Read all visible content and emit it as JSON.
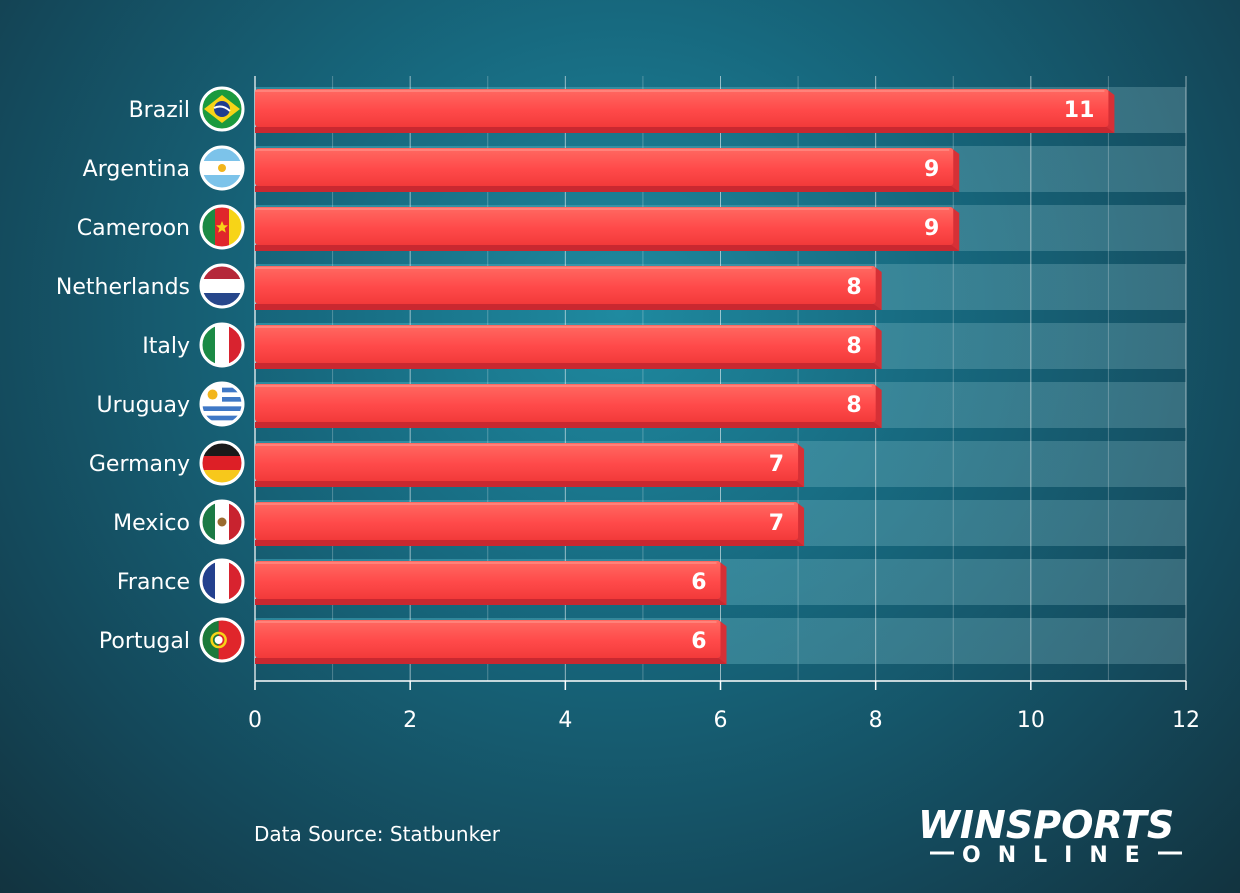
{
  "chart_data": {
    "type": "bar",
    "orientation": "horizontal",
    "categories": [
      "Brazil",
      "Argentina",
      "Cameroon",
      "Netherlands",
      "Italy",
      "Uruguay",
      "Germany",
      "Mexico",
      "France",
      "Portugal"
    ],
    "values": [
      11,
      9,
      9,
      8,
      8,
      8,
      7,
      7,
      6,
      6
    ],
    "xlim": [
      0,
      12
    ],
    "xticks": [
      "0",
      "2",
      "4",
      "6",
      "8",
      "10",
      "12"
    ],
    "grid": true,
    "data_labels": true,
    "bar_color": "#ff4a4a",
    "icons": [
      "flag-brazil-icon",
      "flag-argentina-icon",
      "flag-cameroon-icon",
      "flag-netherlands-icon",
      "flag-italy-icon",
      "flag-uruguay-icon",
      "flag-germany-icon",
      "flag-mexico-icon",
      "flag-france-icon",
      "flag-portugal-icon"
    ]
  },
  "footer": {
    "source": "Data Source: Statbunker"
  },
  "logo": {
    "top_text": "WINSPORTS",
    "bottom_text": "ONLINE"
  }
}
